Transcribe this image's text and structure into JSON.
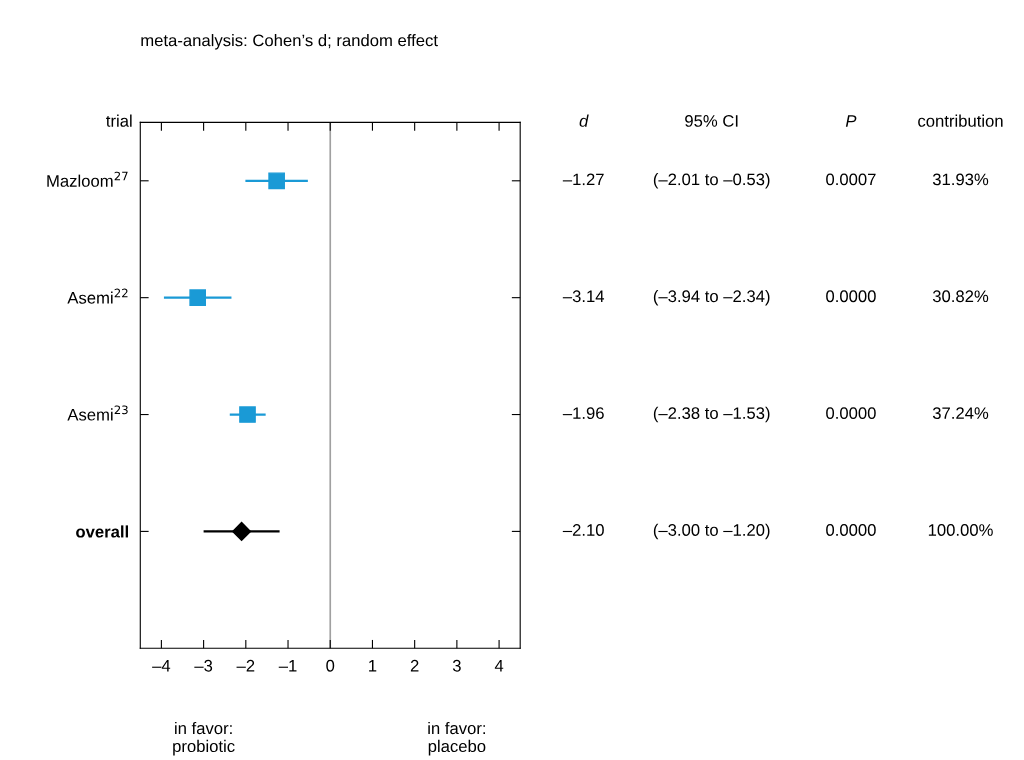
{
  "chart_data": {
    "type": "scatter",
    "orientation": "horizontal",
    "title": "meta-analysis: Cohen’s d; random effect",
    "ylabel": "trial",
    "categories": [
      "Mazloom$^{27}$",
      "Asemi$^{22}$",
      "Asemi$^{23}$",
      "overall"
    ],
    "series": [
      {
        "color": "#1a9ad6",
        "marker": "square",
        "values": [
          -1.27,
          -3.14,
          -1.96,
          null
        ],
        "errors": [
          [
            -2.01,
            -0.53
          ],
          [
            -3.94,
            -2.34
          ],
          [
            -2.38,
            -1.53
          ],
          null
        ]
      },
      {
        "color": "#000000",
        "marker": "diamond",
        "values": [
          null,
          null,
          null,
          -2.1
        ],
        "errors": [
          null,
          null,
          null,
          [
            -3.0,
            -1.2
          ]
        ]
      }
    ],
    "xlim": [
      -4.5,
      4.5
    ],
    "xticks": [
      {
        "value": -4,
        "label": "–4"
      },
      {
        "value": -3,
        "label": "–3"
      },
      {
        "value": -2,
        "label": "–2"
      },
      {
        "value": -1,
        "label": "–1"
      },
      0,
      1,
      2,
      3,
      4
    ],
    "ref_lines": [
      {
        "axis": "x",
        "value": 0,
        "color": "#a0a0a0"
      }
    ],
    "grid": false,
    "legend": false,
    "annotations": [
      "d",
      "95% CI",
      "P",
      "contribution",
      "–1.27",
      "(–2.01 to –0.53)",
      "0.0007",
      "31.93%",
      "–3.14",
      "(–3.94 to –2.34)",
      "0.0000",
      "30.82%",
      "–1.96",
      "(–2.38 to –1.53)",
      "0.0000",
      "37.24%",
      "–2.10",
      "(–3.00 to –1.20)",
      "0.0000",
      "100.00%",
      "in favor:\nprobiotic",
      "in favor:\nplacebo"
    ]
  }
}
